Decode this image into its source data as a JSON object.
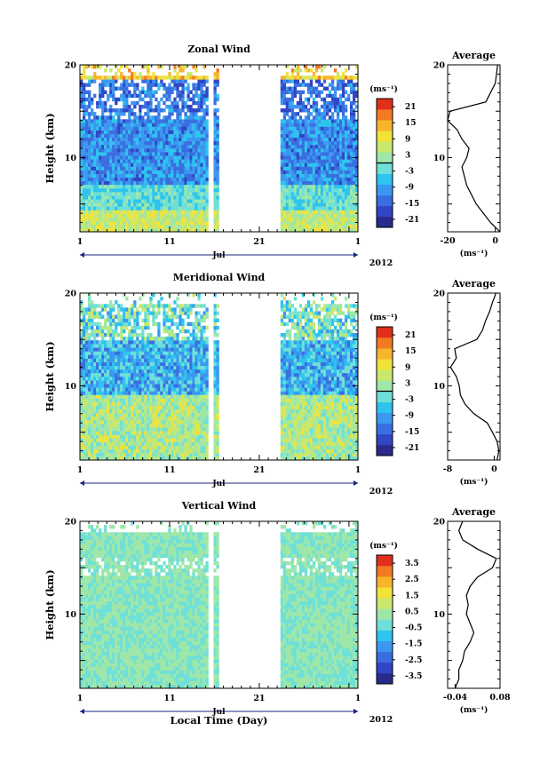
{
  "chart_data": [
    {
      "type": "heatmap",
      "title": "Zonal Wind",
      "ylabel": "Height (km)",
      "xlabel": "",
      "x_ticks": [
        "1",
        "11",
        "21",
        "1"
      ],
      "x_month_label": "Jul",
      "year_label": "2012",
      "ylim": [
        2,
        20
      ],
      "y_ticks": [
        10,
        20
      ],
      "colorbar": {
        "unit": "(ms⁻¹)",
        "range": [
          -24,
          24
        ],
        "ticks": [
          "21",
          "15",
          "9",
          "3",
          "-3",
          "-9",
          "-15",
          "-21"
        ],
        "zero_line": true
      },
      "data_gaps_day": [
        [
          8.2,
          8.35
        ],
        [
          14.2,
          14.9
        ],
        [
          15.6,
          22.4
        ]
      ],
      "average_profile": {
        "title": "Average",
        "xlim": [
          -20,
          2
        ],
        "x_ticks": [
          "-20",
          "0"
        ],
        "xlabel": "(ms⁻¹)",
        "height_km": [
          2,
          3,
          4,
          5,
          6,
          7,
          8,
          9,
          10,
          11,
          12,
          13,
          14,
          15,
          16,
          17,
          18,
          19,
          20
        ],
        "values": [
          2,
          -2,
          -5,
          -8,
          -10,
          -12,
          -13,
          -14,
          -12,
          -11,
          -14,
          -16,
          -20,
          -19,
          -4,
          -2,
          0,
          0.5,
          1
        ]
      }
    },
    {
      "type": "heatmap",
      "title": "Meridional Wind",
      "ylabel": "Height (km)",
      "xlabel": "",
      "x_ticks": [
        "1",
        "11",
        "21",
        "1"
      ],
      "x_month_label": "Jul",
      "year_label": "2012",
      "ylim": [
        2,
        20
      ],
      "y_ticks": [
        10,
        20
      ],
      "colorbar": {
        "unit": "(ms⁻¹)",
        "range": [
          -24,
          24
        ],
        "ticks": [
          "21",
          "15",
          "9",
          "3",
          "-3",
          "-9",
          "-15",
          "-21"
        ],
        "zero_line": true
      },
      "data_gaps_day": [
        [
          8.2,
          8.35
        ],
        [
          14.2,
          14.9
        ],
        [
          15.6,
          22.4
        ]
      ],
      "average_profile": {
        "title": "Average",
        "xlim": [
          -8,
          1
        ],
        "x_ticks": [
          "-8",
          "0"
        ],
        "xlabel": "(ms⁻¹)",
        "height_km": [
          2,
          3,
          4,
          5,
          6,
          7,
          8,
          9,
          10,
          11,
          12,
          13,
          14,
          15,
          16,
          17,
          18,
          19,
          20
        ],
        "values": [
          0.5,
          0.8,
          0.5,
          -0.3,
          -1.2,
          -3.5,
          -5,
          -5.8,
          -6,
          -6.5,
          -7.5,
          -6.5,
          -6.8,
          -3,
          -2,
          -1.5,
          -0.8,
          -0.3,
          0.3
        ]
      }
    },
    {
      "type": "heatmap",
      "title": "Vertical Wind",
      "ylabel": "Height (km)",
      "xlabel": "Local Time (Day)",
      "x_ticks": [
        "1",
        "11",
        "21",
        "1"
      ],
      "x_month_label": "Jul",
      "year_label": "2012",
      "ylim": [
        2,
        20
      ],
      "y_ticks": [
        10,
        20
      ],
      "colorbar": {
        "unit": "(ms⁻¹)",
        "range": [
          -4,
          4
        ],
        "ticks": [
          "3.5",
          "2.5",
          "1.5",
          "0.5",
          "-0.5",
          "-1.5",
          "-2.5",
          "-3.5"
        ],
        "zero_line": false
      },
      "data_gaps_day": [
        [
          8.2,
          8.35
        ],
        [
          14.2,
          14.9
        ],
        [
          15.6,
          22.4
        ]
      ],
      "average_profile": {
        "title": "Average",
        "xlim": [
          -0.06,
          0.08
        ],
        "x_ticks": [
          "-0.04",
          "0.08"
        ],
        "xlabel": "(ms⁻¹)",
        "height_km": [
          2,
          3,
          4,
          5,
          6,
          7,
          8,
          9,
          10,
          11,
          12,
          13,
          14,
          15,
          16,
          17,
          18,
          19,
          20
        ],
        "values": [
          -0.04,
          -0.03,
          -0.03,
          -0.02,
          -0.015,
          0.0,
          0.01,
          0.0,
          -0.01,
          -0.005,
          -0.01,
          0.0,
          0.02,
          0.06,
          0.07,
          0.02,
          -0.02,
          -0.03,
          -0.02
        ]
      }
    }
  ]
}
